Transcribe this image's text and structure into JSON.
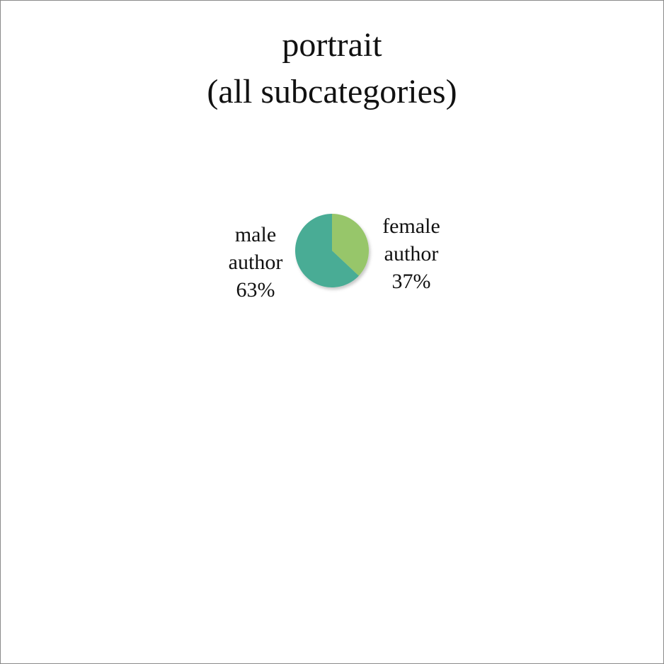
{
  "chart_data": {
    "type": "pie",
    "title": [
      "portrait",
      "(all subcategories)"
    ],
    "slices": [
      {
        "label": "female author",
        "label_lines": [
          "female",
          "author",
          "37%"
        ],
        "value": 37,
        "color": "#97c66b"
      },
      {
        "label": "male author",
        "label_lines": [
          "male",
          "author",
          "63%"
        ],
        "value": 63,
        "color": "#4aac95"
      }
    ],
    "legend": "none",
    "data_labels": "outside"
  }
}
